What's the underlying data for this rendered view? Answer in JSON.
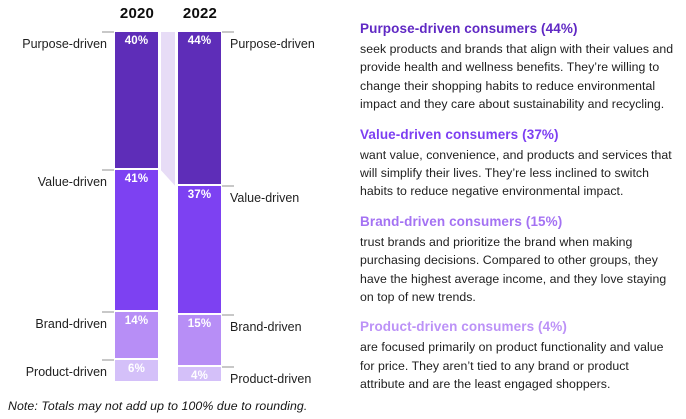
{
  "chart_data": {
    "type": "bar",
    "subtype": "stacked-100pct-slope-comparison",
    "years": [
      "2020",
      "2022"
    ],
    "categories": [
      "Purpose-driven",
      "Value-driven",
      "Brand-driven",
      "Product-driven"
    ],
    "series": [
      {
        "name": "2020",
        "values": [
          40,
          41,
          14,
          6
        ]
      },
      {
        "name": "2022",
        "values": [
          44,
          37,
          15,
          4
        ]
      }
    ],
    "value_suffix": "%",
    "segment_colors": [
      "#5e2db8",
      "#7d41f2",
      "#b78ef6",
      "#d4c0f9"
    ],
    "connector_color": "#e7dcf6",
    "tick_color": "#c8c8c8",
    "value_label_color": "#ffffff",
    "legend_position": "none",
    "grid": false
  },
  "note": "Note: Totals may not add up to 100% due to rounding.",
  "sections": [
    {
      "heading": "Purpose-driven consumers (44%)",
      "heading_color": "#6029c4",
      "body": "seek products and brands that align with their values and provide health and wellness benefits. They’re willing to change their shopping habits to reduce environmental impact and they care about sustainability and recycling."
    },
    {
      "heading": "Value-driven consumers (37%)",
      "heading_color": "#7d3ff2",
      "body": "want value, convenience, and products and services that will simplify their lives. They’re less inclined to switch habits to reduce negative environmental impact."
    },
    {
      "heading": "Brand-driven consumers (15%)",
      "heading_color": "#a472f3",
      "body": "trust brands and prioritize the brand when making purchasing decisions. Compared to other groups, they have the highest average income, and they love staying on top of new trends."
    },
    {
      "heading": "Product-driven consumers (4%)",
      "heading_color": "#bc92f7",
      "body": "are focused primarily on product functionality and value for price. They aren’t tied to any brand or product attribute and are the least engaged shoppers."
    }
  ]
}
